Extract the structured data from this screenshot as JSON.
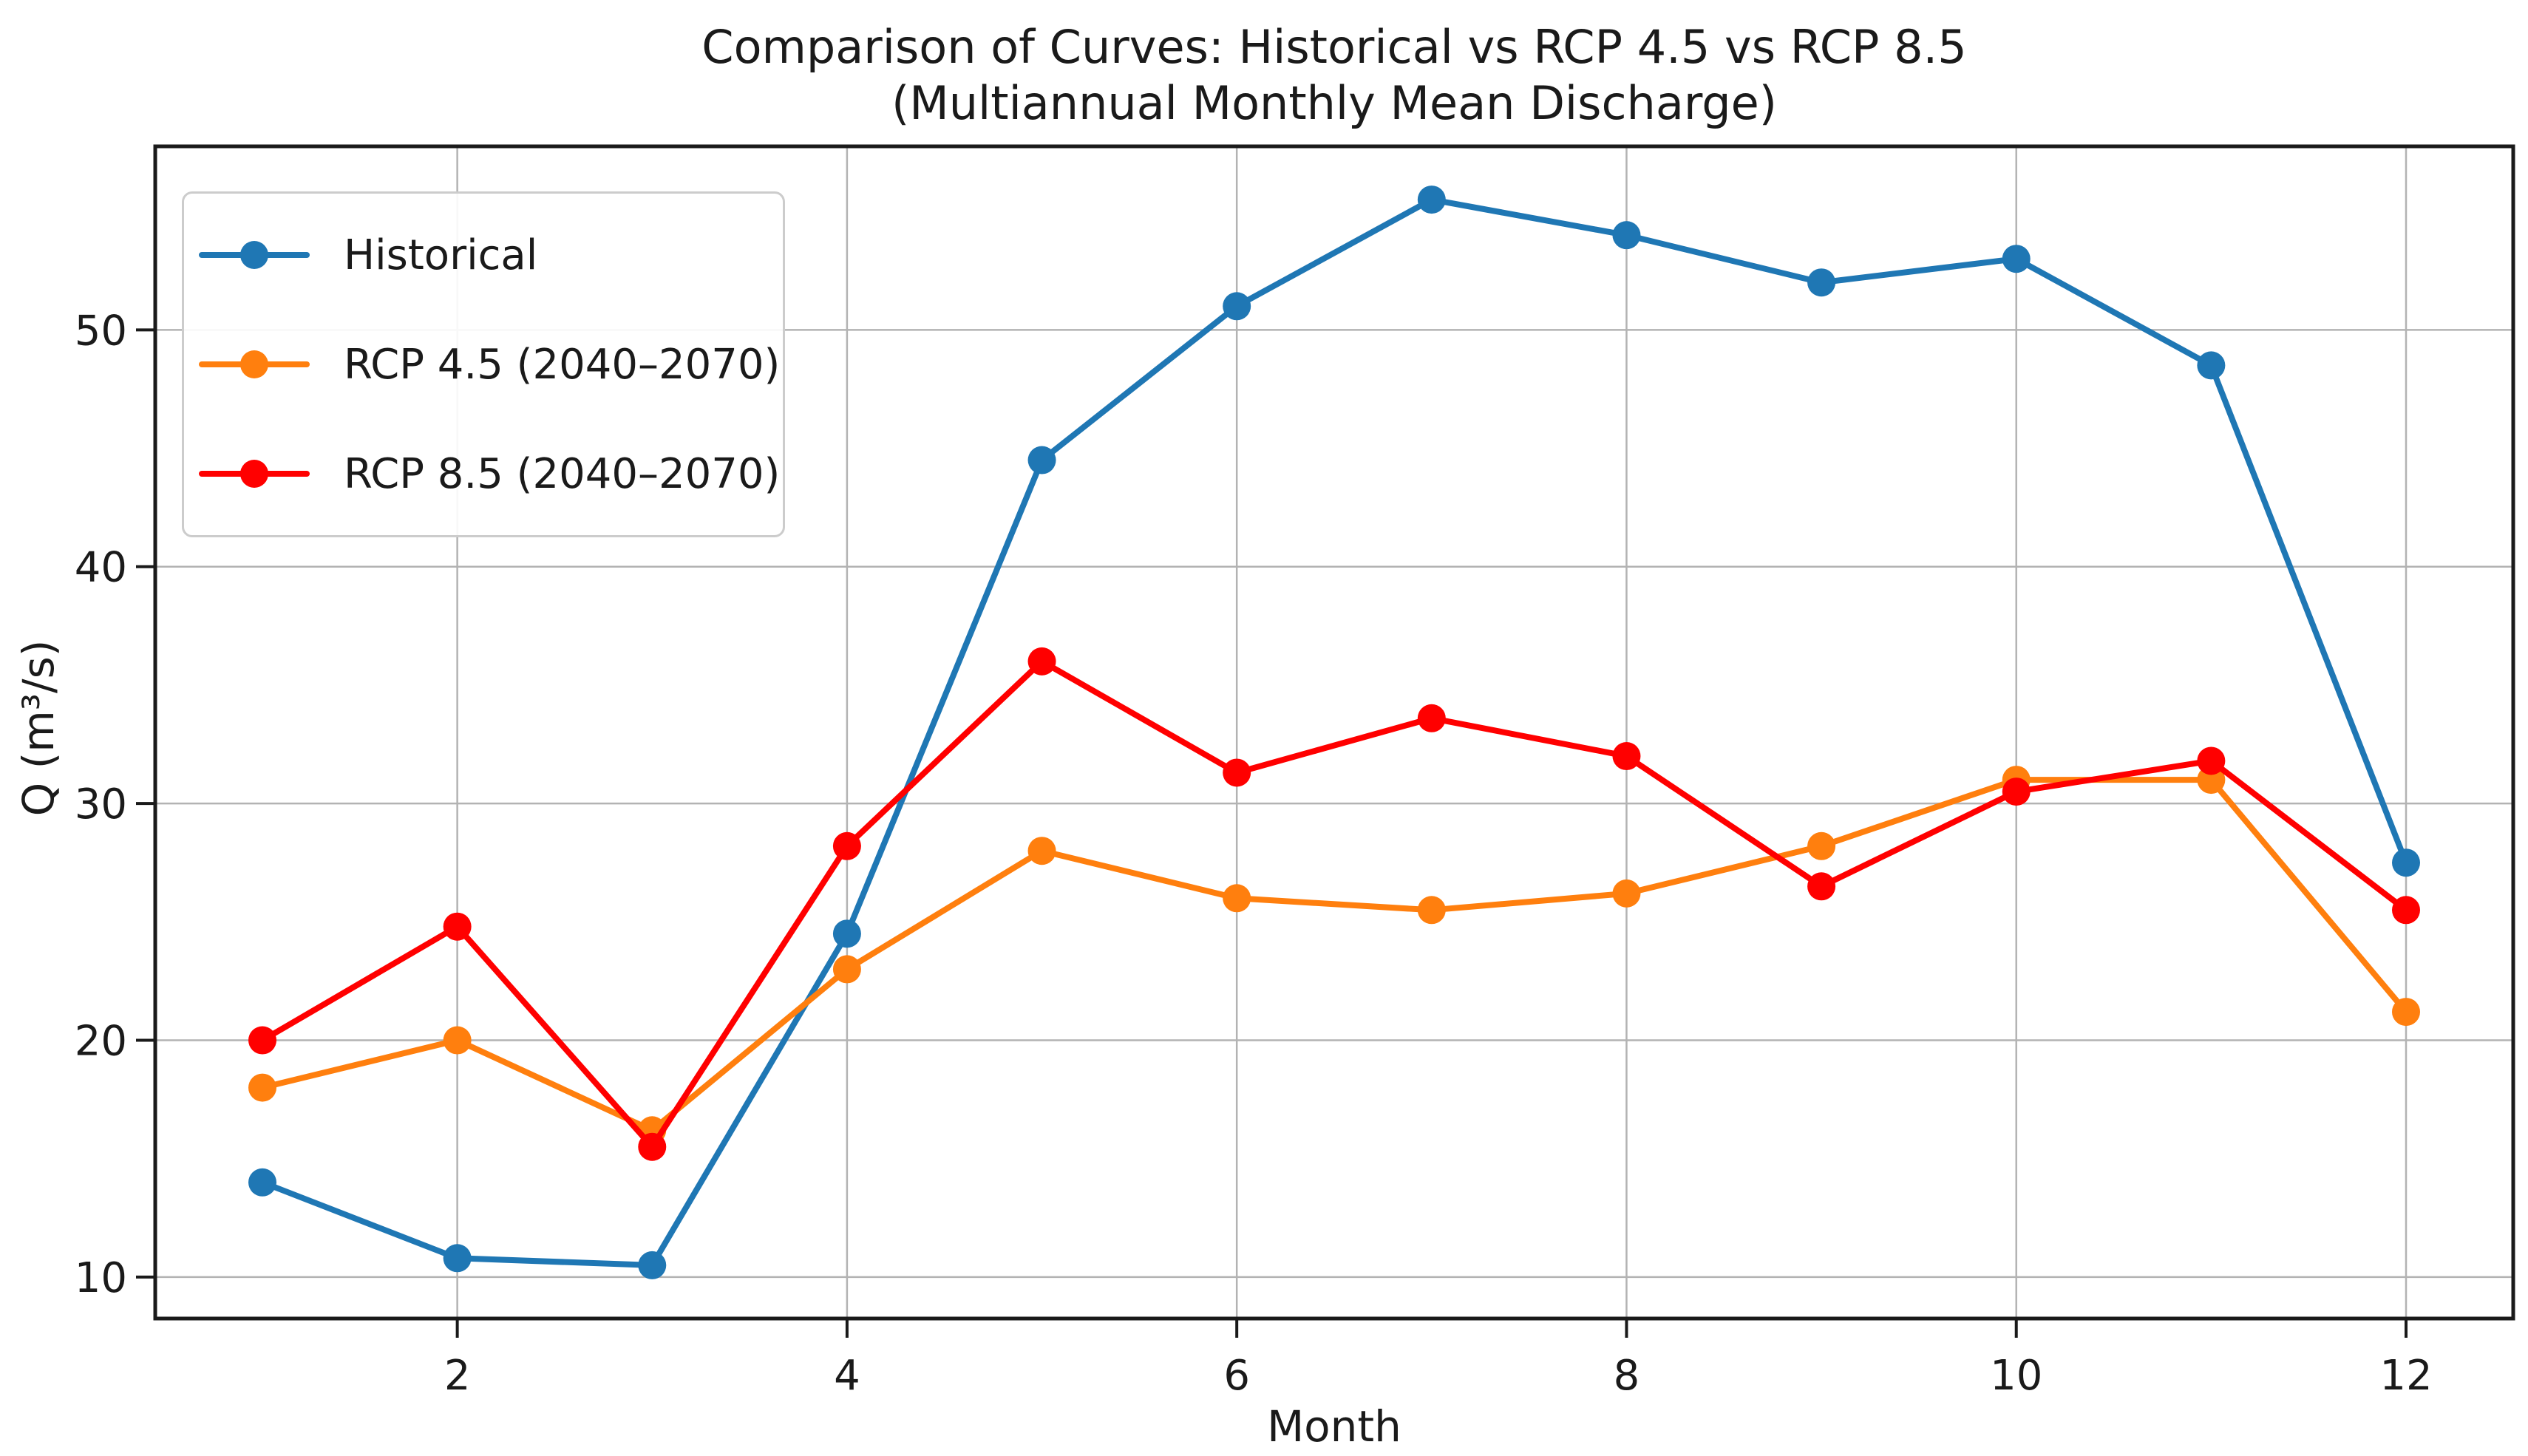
{
  "chart_data": {
    "type": "line",
    "title": "Comparison of Curves: Historical vs RCP 4.5 vs RCP 8.5",
    "subtitle": "(Multiannual Monthly Mean Discharge)",
    "xlabel": "Month",
    "ylabel": "Q (m³/s)",
    "x": [
      1,
      2,
      3,
      4,
      5,
      6,
      7,
      8,
      9,
      10,
      11,
      12
    ],
    "xticks": [
      2,
      4,
      6,
      8,
      10,
      12
    ],
    "yticks": [
      10,
      20,
      30,
      40,
      50
    ],
    "xlim": [
      0.45,
      12.55
    ],
    "ylim": [
      8.25,
      57.75
    ],
    "grid": true,
    "legend_position": "upper-left",
    "series": [
      {
        "name": "Historical",
        "color": "#1f77b4",
        "marker": "circle",
        "values": [
          14.0,
          10.8,
          10.5,
          24.5,
          44.5,
          51.0,
          55.5,
          54.0,
          52.0,
          53.0,
          48.5,
          27.5
        ]
      },
      {
        "name": "RCP 4.5 (2040–2070)",
        "color": "#ff7f0e",
        "marker": "circle",
        "values": [
          18.0,
          20.0,
          16.2,
          23.0,
          28.0,
          26.0,
          25.5,
          26.2,
          28.2,
          31.0,
          31.0,
          21.2
        ]
      },
      {
        "name": "RCP 8.5 (2040–2070)",
        "color": "#ff0000",
        "marker": "circle",
        "values": [
          20.0,
          24.8,
          15.5,
          28.2,
          36.0,
          31.3,
          33.6,
          32.0,
          26.5,
          30.5,
          31.8,
          25.5
        ]
      }
    ]
  },
  "style": {
    "background": "#ffffff",
    "grid_color": "#b3b3b3",
    "spine_color": "#1a1a1a",
    "tick_color": "#1a1a1a",
    "text_color": "#1a1a1a",
    "legend_border_color": "#cccccc"
  }
}
